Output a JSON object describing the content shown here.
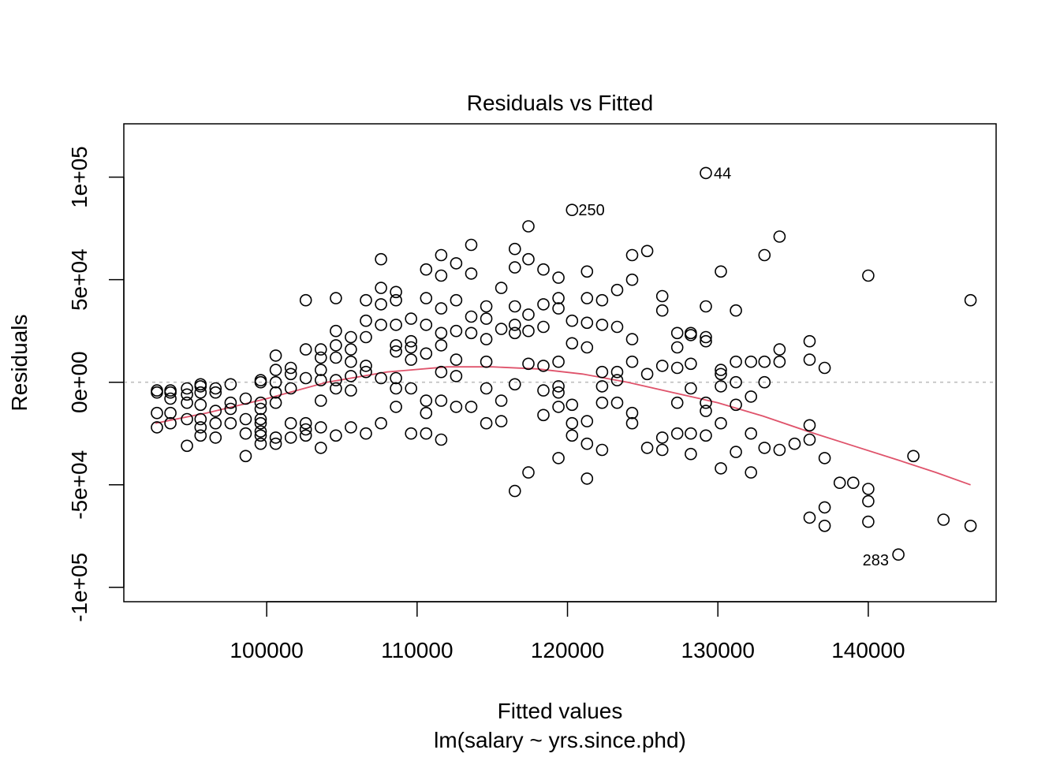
{
  "chart_data": {
    "type": "scatter",
    "title": "Residuals vs Fitted",
    "xlabel": "Fitted values",
    "subtitle": "lm(salary ~ yrs.since.phd)",
    "ylabel": "Residuals",
    "xlim": [
      90500,
      148500
    ],
    "ylim": [
      -107000,
      126000
    ],
    "x_ticks": [
      100000,
      110000,
      120000,
      130000,
      140000
    ],
    "x_tick_labels": [
      "100000",
      "110000",
      "120000",
      "130000",
      "140000"
    ],
    "y_ticks": [
      -100000,
      -50000,
      0,
      50000,
      100000
    ],
    "y_tick_labels": [
      "-1e+05",
      "-5e+04",
      "0e+00",
      "5e+04",
      "1e+05"
    ],
    "grid": false,
    "colors": {
      "points": "#000000",
      "smooth": "#DF536B",
      "reference": "#BEBEBE"
    },
    "reference_line": 0,
    "smooth_line": {
      "x": [
        92600,
        96000,
        100000,
        104000,
        108000,
        112000,
        115000,
        118000,
        121000,
        124000,
        127000,
        130000,
        133000,
        136000,
        139000,
        142000,
        144500,
        146800
      ],
      "y": [
        -20000,
        -15000,
        -8000,
        0,
        5000,
        7500,
        7500,
        6500,
        4000,
        0,
        -5000,
        -10000,
        -16500,
        -24000,
        -31000,
        -38000,
        -44000,
        -50000
      ]
    },
    "annotations": [
      {
        "label": "44",
        "x": 129200,
        "y": 102000
      },
      {
        "label": "250",
        "x": 120200,
        "y": 84000
      },
      {
        "label": "283",
        "x": 142000,
        "y": -84000
      }
    ],
    "series": [
      {
        "x": [
          92700,
          92700,
          92700,
          92700,
          93600,
          93600,
          93600,
          93600,
          93600,
          94700,
          94700,
          94700,
          94700,
          94700,
          95600,
          95600,
          95600,
          95600,
          95600,
          95600,
          95600,
          96600,
          96600,
          96600,
          96600,
          96600,
          97600,
          97600,
          97600,
          97600,
          98600,
          98600,
          98600,
          98600,
          99600,
          99600,
          99600,
          99600,
          99600,
          99600,
          99600,
          99600,
          99600,
          100600,
          100600,
          100600,
          100600,
          100600,
          100600,
          100600,
          101600,
          101600,
          101600,
          101600,
          101600,
          102600,
          102600,
          102600,
          102600,
          102600,
          102600,
          103600,
          103600,
          103600,
          103600,
          103600,
          103600,
          103600,
          104600,
          104600,
          104600,
          104600,
          104600,
          104600,
          104600,
          105600,
          105600,
          105600,
          105600,
          105600,
          105600,
          106600,
          106600,
          106600,
          106600,
          106600,
          106600,
          107600,
          107600,
          107600,
          107600,
          107600,
          107600,
          108600,
          108600,
          108600,
          108600,
          108600,
          108600,
          108600,
          108600,
          109600,
          109600,
          109600,
          109600,
          109600,
          109600,
          110600,
          110600,
          110600,
          110600,
          110600,
          110600,
          110600,
          111600,
          111600,
          111600,
          111600,
          111600,
          111600,
          111600,
          111600,
          112600,
          112600,
          112600,
          112600,
          112600,
          112600,
          113600,
          113600,
          113600,
          113600,
          113600,
          114600,
          114600,
          114600,
          114600,
          114600,
          114600,
          115600,
          115600,
          115600,
          115600,
          116500,
          116500,
          116500,
          116500,
          116500,
          116500,
          116500,
          117400,
          117400,
          117400,
          117400,
          117400,
          117400,
          118400,
          118400,
          118400,
          118400,
          118400,
          118400,
          119400,
          119400,
          119400,
          119400,
          119400,
          119400,
          119400,
          119400,
          120300,
          120300,
          120300,
          120300,
          120300,
          120300,
          121300,
          121300,
          121300,
          121300,
          121300,
          121300,
          121300,
          122300,
          122300,
          122300,
          122300,
          122300,
          122300,
          123300,
          123300,
          123300,
          123300,
          123300,
          124300,
          124300,
          124300,
          124300,
          124300,
          124300,
          125300,
          125300,
          125300,
          126300,
          126300,
          126300,
          126300,
          126300,
          127300,
          127300,
          127300,
          127300,
          127300,
          128200,
          128200,
          128200,
          128200,
          128200,
          128200,
          129200,
          129200,
          129200,
          129200,
          129200,
          129200,
          129200,
          130200,
          130200,
          130200,
          130200,
          130200,
          130200,
          131200,
          131200,
          131200,
          131200,
          131200,
          132200,
          132200,
          132200,
          132200,
          133100,
          133100,
          133100,
          133100,
          134100,
          134100,
          134100,
          134100,
          135100,
          136100,
          136100,
          136100,
          136100,
          136100,
          137100,
          137100,
          137100,
          137100,
          138100,
          139000,
          140000,
          140000,
          140000,
          140000,
          142000,
          143000,
          145000,
          146800,
          146800
        ],
        "y": [
          -4000,
          -5000,
          -15000,
          -22000,
          -5000,
          -8000,
          -15000,
          -20000,
          -4000,
          -3000,
          -6000,
          -10000,
          -18000,
          -31000,
          -2000,
          -5000,
          -11000,
          -18000,
          -22000,
          -26000,
          -1000,
          -5000,
          -14000,
          -20000,
          -27000,
          -3000,
          -13000,
          -10000,
          -20000,
          -1000,
          -8000,
          -18000,
          -25000,
          -36000,
          1000,
          0,
          -10000,
          -13000,
          -18000,
          -20000,
          -24000,
          -26000,
          -30000,
          13000,
          6000,
          0,
          -5000,
          -10000,
          -27000,
          -30000,
          7000,
          4000,
          -3000,
          -20000,
          -27000,
          40000,
          16000,
          2000,
          -20000,
          -23000,
          -26000,
          16000,
          12000,
          6000,
          1000,
          -9000,
          -22000,
          -32000,
          41000,
          25000,
          18000,
          12000,
          1000,
          -3000,
          -26000,
          22000,
          16000,
          10000,
          3000,
          -4000,
          -22000,
          40000,
          30000,
          22000,
          8000,
          5000,
          -25000,
          60000,
          46000,
          38000,
          28000,
          2000,
          -20000,
          44000,
          40000,
          28000,
          18000,
          15000,
          2000,
          -3000,
          -12000,
          31000,
          20000,
          17000,
          11000,
          -3000,
          -25000,
          55000,
          41000,
          28000,
          14000,
          -9000,
          -15000,
          -25000,
          62000,
          52000,
          36000,
          24000,
          18000,
          5000,
          -9000,
          -28000,
          58000,
          40000,
          25000,
          11000,
          3000,
          -12000,
          67000,
          53000,
          32000,
          24000,
          -12000,
          37000,
          31000,
          21000,
          10000,
          -3000,
          -20000,
          46000,
          26000,
          -9000,
          -19000,
          65000,
          56000,
          37000,
          28000,
          24000,
          -1000,
          -53000,
          76000,
          60000,
          33000,
          25000,
          9000,
          -44000,
          55000,
          38000,
          27000,
          8000,
          -4000,
          -16000,
          51000,
          41000,
          36000,
          10000,
          -2000,
          -5000,
          -12000,
          -37000,
          84000,
          30000,
          19000,
          -11000,
          -20000,
          -26000,
          54000,
          41000,
          29000,
          17000,
          -19000,
          -30000,
          -47000,
          40000,
          28000,
          5000,
          -2000,
          -10000,
          -33000,
          45000,
          27000,
          5000,
          1000,
          -10000,
          62000,
          50000,
          21000,
          10000,
          -15000,
          -20000,
          64000,
          4000,
          -32000,
          42000,
          35000,
          8000,
          -27000,
          -33000,
          24000,
          17000,
          7000,
          -10000,
          -25000,
          24000,
          23000,
          9000,
          -3000,
          -25000,
          -35000,
          102000,
          37000,
          22000,
          20000,
          -10000,
          -14000,
          -26000,
          54000,
          6000,
          4000,
          -2000,
          -20000,
          -42000,
          35000,
          10000,
          0,
          -11000,
          -34000,
          10000,
          -7000,
          -25000,
          -44000,
          62000,
          10000,
          0,
          -32000,
          71000,
          16000,
          10000,
          -33000,
          -30000,
          20000,
          11000,
          -21000,
          -28000,
          -66000,
          7000,
          -37000,
          -61000,
          -70000,
          -49000,
          -49000,
          52000,
          -52000,
          -58000,
          -68000,
          -84000,
          -36000,
          -67000,
          40000,
          -70000
        ]
      }
    ]
  }
}
